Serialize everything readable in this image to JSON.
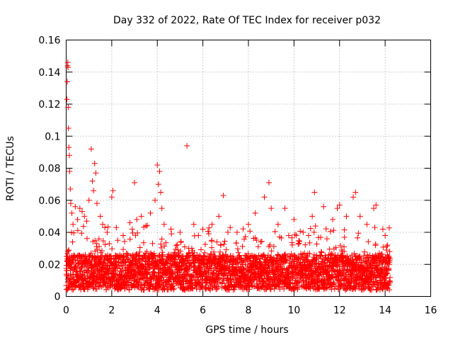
{
  "chart_data": {
    "type": "scatter",
    "title": "Day 332 of 2022, Rate Of TEC Index for receiver p032",
    "xlabel": "GPS time / hours",
    "ylabel": "ROTI / TECUs",
    "xlim": [
      0,
      16
    ],
    "ylim": [
      0,
      0.16
    ],
    "xticks": [
      0,
      2,
      4,
      6,
      8,
      10,
      12,
      14,
      16
    ],
    "yticks": [
      0,
      0.02,
      0.04,
      0.06,
      0.08,
      0.1,
      0.12,
      0.14,
      0.16
    ],
    "xtick_labels": [
      "0",
      "2",
      "4",
      "6",
      "8",
      "10",
      "12",
      "14",
      "16"
    ],
    "ytick_labels": [
      "0",
      "0.02",
      "0.04",
      "0.06",
      "0.08",
      "0.1",
      "0.12",
      "0.14",
      "0.16"
    ],
    "grid": true,
    "marker": "+",
    "color": "#ff0000",
    "series": [
      {
        "x": [
          0.03,
          0.05,
          0.06,
          0.07,
          0.08,
          0.09,
          0.1,
          0.12,
          0.14,
          0.15,
          0.18,
          0.2,
          0.25,
          0.3,
          0.4,
          0.5,
          0.6,
          0.7,
          0.8,
          0.9,
          1.0,
          1.1,
          1.15,
          1.2,
          1.25,
          1.3,
          1.35,
          1.5,
          1.6,
          1.7,
          1.8,
          2.0,
          2.05,
          2.2,
          2.5,
          2.8,
          2.9,
          3.0,
          3.1,
          3.3,
          3.5,
          3.7,
          3.9,
          4.0,
          4.05,
          4.1,
          4.15,
          4.2,
          4.3,
          4.6,
          5.0,
          5.3,
          5.6,
          6.0,
          6.4,
          6.7,
          6.9,
          7.2,
          7.5,
          8.0,
          8.3,
          8.7,
          8.9,
          9.0,
          9.3,
          9.6,
          10.0,
          10.4,
          10.8,
          10.9,
          11.3,
          11.7,
          11.9,
          12.0,
          12.3,
          12.6,
          12.7,
          12.9,
          13.2,
          13.5,
          13.6,
          13.9,
          14.0,
          14.1,
          14.2
        ],
        "y": [
          0.123,
          0.134,
          0.144,
          0.146,
          0.143,
          0.118,
          0.105,
          0.093,
          0.088,
          0.078,
          0.067,
          0.058,
          0.052,
          0.045,
          0.056,
          0.048,
          0.055,
          0.053,
          0.05,
          0.047,
          0.06,
          0.092,
          0.072,
          0.066,
          0.083,
          0.077,
          0.058,
          0.05,
          0.045,
          0.043,
          0.04,
          0.062,
          0.066,
          0.043,
          0.038,
          0.046,
          0.042,
          0.071,
          0.048,
          0.05,
          0.044,
          0.052,
          0.06,
          0.082,
          0.07,
          0.078,
          0.065,
          0.055,
          0.045,
          0.042,
          0.04,
          0.094,
          0.045,
          0.042,
          0.045,
          0.05,
          0.063,
          0.043,
          0.04,
          0.045,
          0.052,
          0.062,
          0.071,
          0.055,
          0.045,
          0.055,
          0.048,
          0.04,
          0.05,
          0.065,
          0.056,
          0.048,
          0.055,
          0.057,
          0.05,
          0.062,
          0.065,
          0.05,
          0.045,
          0.055,
          0.057,
          0.042,
          0.038,
          0.032,
          0.028
        ]
      }
    ]
  }
}
